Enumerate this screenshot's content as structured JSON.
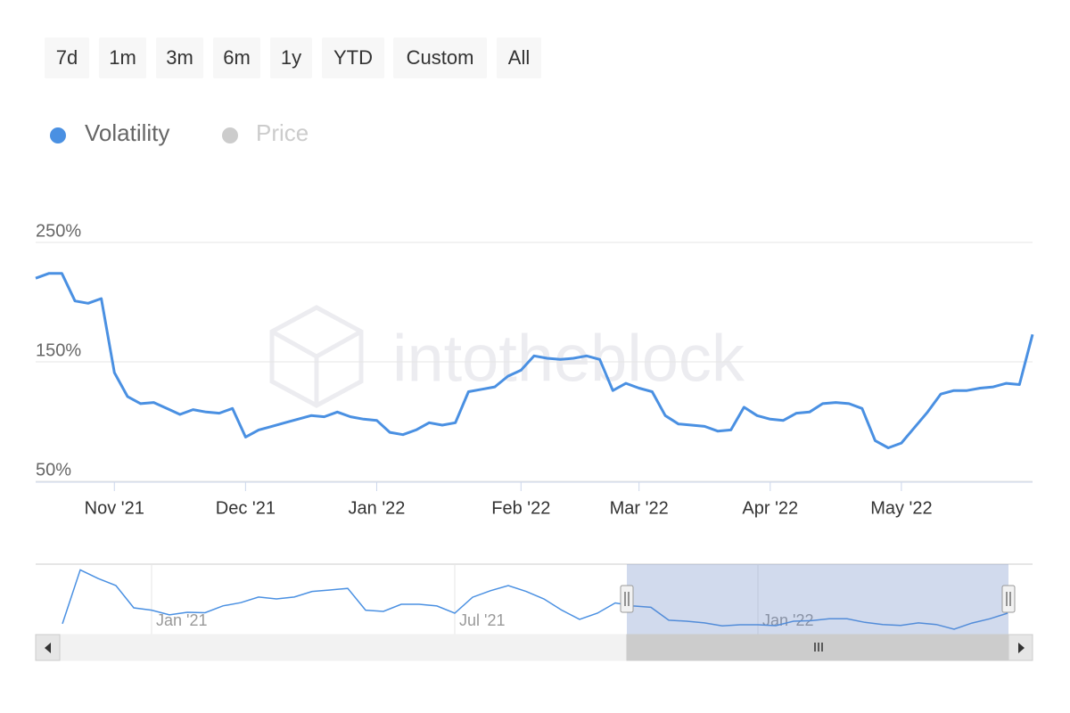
{
  "range_buttons": [
    "7d",
    "1m",
    "3m",
    "6m",
    "1y",
    "YTD",
    "Custom",
    "All"
  ],
  "watermark": "intotheblock",
  "chart_data": [
    {
      "type": "line",
      "categories": [
        null,
        null,
        null,
        null,
        null,
        null,
        "Nov '21",
        null,
        null,
        null,
        null,
        null,
        null,
        null,
        null,
        null,
        "Dec '21",
        null,
        null,
        null,
        null,
        null,
        null,
        null,
        null,
        null,
        "Jan '22",
        null,
        null,
        null,
        null,
        null,
        null,
        null,
        null,
        null,
        null,
        "Feb '22",
        null,
        null,
        null,
        null,
        null,
        null,
        null,
        null,
        "Mar '22",
        null,
        null,
        null,
        null,
        null,
        null,
        null,
        null,
        null,
        "Apr '22",
        null,
        null,
        null,
        null,
        null,
        null,
        null,
        null,
        null,
        "May '22",
        null,
        null,
        null,
        null,
        null,
        null,
        null,
        null,
        null,
        null
      ],
      "series": [
        {
          "name": "Volatility",
          "color": "#4a90e2",
          "values": [
            220,
            224,
            224,
            201,
            199,
            203,
            141,
            121,
            115,
            116,
            111,
            106,
            110,
            108,
            107,
            111,
            87,
            93,
            96,
            99,
            102,
            105,
            104,
            108,
            104,
            102,
            101,
            91,
            89,
            93,
            99,
            97,
            99,
            125,
            127,
            129,
            138,
            143,
            155,
            153,
            152,
            153,
            155,
            152,
            126,
            132,
            128,
            125,
            105,
            98,
            97,
            96,
            92,
            93,
            112,
            105,
            102,
            101,
            107,
            108,
            115,
            116,
            115,
            111,
            84,
            78,
            82,
            95,
            108,
            123,
            126,
            126,
            128,
            129,
            132,
            131,
            173
          ]
        }
      ],
      "hidden_series": [
        {
          "name": "Price",
          "color": "#cccccc"
        }
      ],
      "ylim": [
        50,
        250
      ],
      "yticks": [
        {
          "value": 50,
          "label": "50%"
        },
        {
          "value": 150,
          "label": "150%"
        },
        {
          "value": 250,
          "label": "250%"
        }
      ],
      "grid": true
    },
    {
      "type": "line",
      "categories": [
        null,
        null,
        null,
        null,
        null,
        "Jan '21",
        null,
        null,
        null,
        null,
        null,
        null,
        null,
        null,
        null,
        null,
        null,
        null,
        null,
        null,
        null,
        null,
        "Jul '21",
        null,
        null,
        null,
        null,
        null,
        null,
        null,
        null,
        null,
        null,
        null,
        null,
        null,
        null,
        null,
        null,
        "Jan '22",
        null,
        null,
        null,
        null,
        null,
        null,
        null,
        null,
        null,
        null,
        null,
        null,
        null,
        null
      ],
      "series": [
        {
          "color": "#4a90e2",
          "values": [
            115,
            490,
            430,
            381,
            226,
            210,
            177,
            195,
            192,
            240,
            262,
            301,
            288,
            301,
            340,
            350,
            361,
            210,
            201,
            251,
            251,
            239,
            189,
            300,
            345,
            381,
            340,
            288,
            210,
            146,
            189,
            260,
            239,
            230,
            140,
            133,
            121,
            100,
            108,
            108,
            102,
            133,
            137,
            150,
            150,
            125,
            110,
            104,
            121,
            110,
            77,
            120,
            150,
            189
          ]
        }
      ],
      "ylim": [
        40,
        530
      ]
    }
  ]
}
